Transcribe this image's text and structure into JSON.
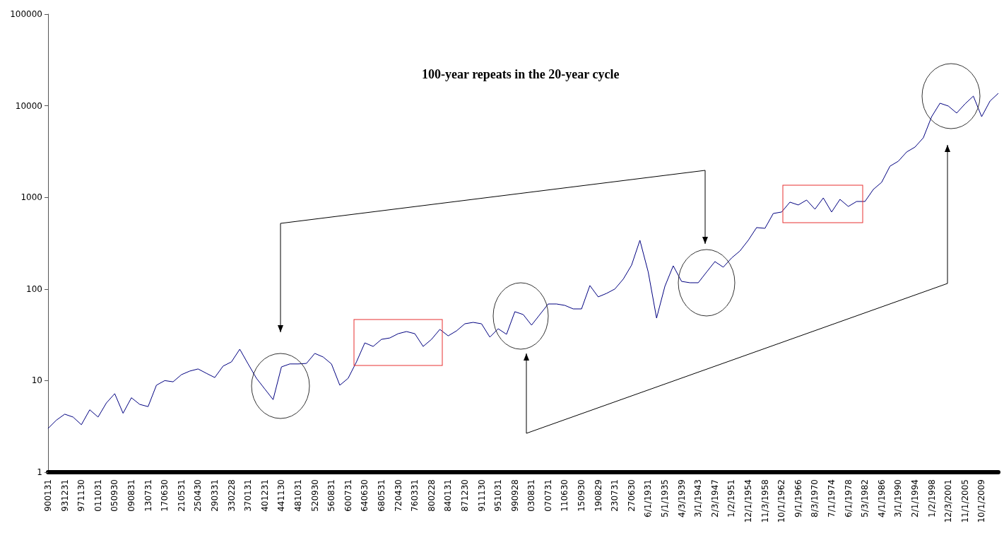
{
  "chart_data": {
    "type": "line",
    "title": "100-year repeats in the 20-year cycle",
    "categories": [
      "900131",
      null,
      "931231",
      null,
      "971130",
      null,
      "011031",
      null,
      "050930",
      null,
      "090831",
      null,
      "130731",
      null,
      "170630",
      null,
      "210531",
      null,
      "250430",
      null,
      "290331",
      null,
      "330228",
      null,
      "370131",
      null,
      "401231",
      null,
      "441130",
      null,
      "481031",
      null,
      "520930",
      null,
      "560831",
      null,
      "600731",
      null,
      "640630",
      null,
      "680531",
      null,
      "720430",
      null,
      "760331",
      null,
      "800228",
      null,
      "840131",
      null,
      "871230",
      null,
      "911130",
      null,
      "951031",
      null,
      "990928",
      null,
      "030831",
      null,
      "070731",
      null,
      "110630",
      null,
      "150930",
      null,
      "190829",
      null,
      "230731",
      null,
      "270630",
      null,
      "6/1/1931",
      null,
      "5/1/1935",
      null,
      "4/3/1939",
      null,
      "3/1/1943",
      null,
      "2/3/1947",
      null,
      "1/2/1951",
      null,
      "12/1/1954",
      null,
      "11/3/1958",
      null,
      "10/1/1962",
      null,
      "9/1/1966",
      null,
      "8/3/1970",
      null,
      "7/1/1974",
      null,
      "6/1/1978",
      null,
      "5/3/1982",
      null,
      "4/1/1986",
      null,
      "3/1/1990",
      null,
      "2/1/1994",
      null,
      "1/2/1998",
      null,
      "12/3/2001",
      null,
      "11/1/2005",
      null,
      "10/1/2009",
      null,
      null
    ],
    "series": [
      {
        "color": "#000080",
        "values": [
          3.0,
          3.7,
          4.3,
          4.0,
          3.3,
          4.8,
          4.0,
          5.7,
          7.2,
          4.4,
          6.5,
          5.5,
          5.2,
          8.9,
          10,
          9.7,
          11.6,
          12.7,
          13.4,
          12,
          10.8,
          14.4,
          16,
          22,
          15.2,
          10.6,
          8.1,
          6.2,
          14.1,
          15.2,
          15.2,
          15.4,
          19.8,
          18.1,
          15.2,
          8.9,
          10.6,
          16,
          25.8,
          23.6,
          28.2,
          29.2,
          32.5,
          34.3,
          32.5,
          23.6,
          28.2,
          36.2,
          30.8,
          34.9,
          41.7,
          43.2,
          41.7,
          29.8,
          36.8,
          32,
          56.5,
          52.6,
          40.3,
          52.6,
          68.6,
          68.6,
          66.2,
          60.6,
          60.6,
          109,
          82,
          89.5,
          100,
          128,
          182,
          340,
          153,
          48.1,
          107,
          179,
          121,
          117,
          117,
          153,
          199,
          173,
          218,
          260,
          340,
          468,
          459,
          667,
          692,
          887,
          826,
          935,
          742,
          986,
          692,
          951,
          796,
          902,
          902,
          1220,
          1460,
          2190,
          2480,
          3130,
          3540,
          4470,
          7600,
          10660,
          9930,
          8320,
          10470,
          12740,
          7600,
          11250,
          13680
        ]
      }
    ],
    "log": "y",
    "ylim": [
      1,
      100000
    ],
    "yticks": [
      1,
      10,
      100,
      1000,
      10000,
      100000
    ],
    "grid": false,
    "marker": "none",
    "line_style": "solid"
  }
}
